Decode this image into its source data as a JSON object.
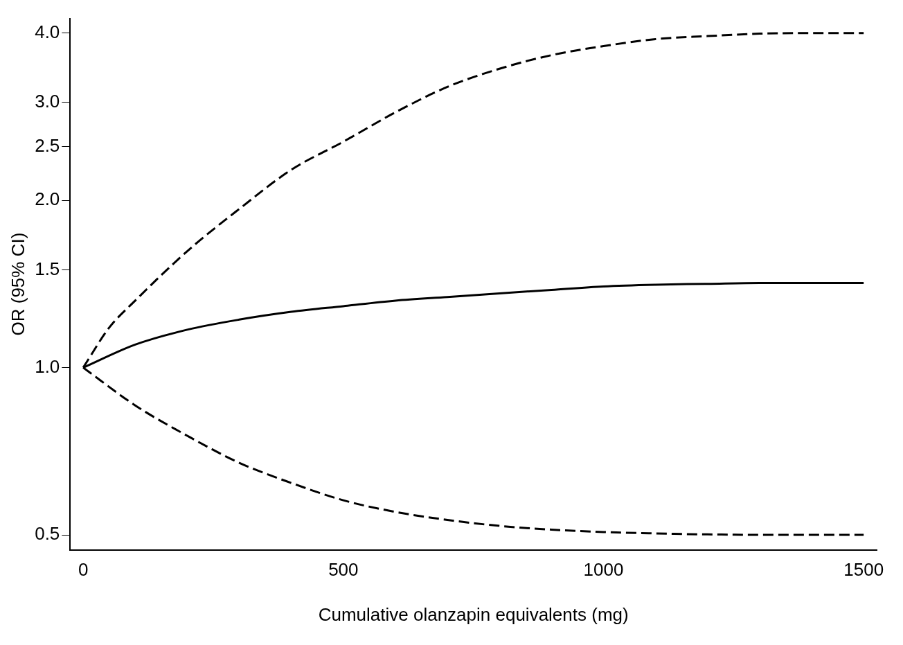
{
  "chart_data": {
    "type": "line",
    "xlabel": "Cumulative olanzapin equivalents (mg)",
    "ylabel": "OR (95% CI)",
    "log": "y",
    "grid": false,
    "legend": false,
    "marker": "none",
    "xlim": [
      -25,
      1525
    ],
    "xticks": [
      0,
      500,
      1000,
      1500
    ],
    "ylim": [
      0.47,
      4.25
    ],
    "yticks": [
      {
        "value": 0.5,
        "label": "0.5"
      },
      {
        "value": 1,
        "label": "1.0"
      },
      {
        "value": 1.5,
        "label": "1.5"
      },
      {
        "value": 2,
        "label": "2.0"
      },
      {
        "value": 2.5,
        "label": "2.5"
      },
      {
        "value": 3,
        "label": "3.0"
      },
      {
        "value": 4,
        "label": "4.0"
      }
    ],
    "series": [
      {
        "color": "#000000",
        "line_style": "dashed",
        "x": [
          0,
          50,
          100,
          200,
          300,
          400,
          500,
          600,
          700,
          800,
          900,
          1000,
          1100,
          1200,
          1300,
          1400,
          1500
        ],
        "values": [
          1.0,
          1.18,
          1.32,
          1.62,
          1.93,
          2.27,
          2.55,
          2.88,
          3.2,
          3.45,
          3.65,
          3.79,
          3.9,
          3.95,
          3.99,
          4.0,
          4.0
        ]
      },
      {
        "color": "#000000",
        "line_style": "solid",
        "x": [
          0,
          100,
          200,
          300,
          400,
          500,
          600,
          700,
          800,
          900,
          1000,
          1100,
          1200,
          1300,
          1400,
          1500
        ],
        "values": [
          1.0,
          1.1,
          1.17,
          1.22,
          1.26,
          1.29,
          1.32,
          1.34,
          1.36,
          1.38,
          1.4,
          1.41,
          1.415,
          1.42,
          1.42,
          1.42
        ]
      },
      {
        "color": "#000000",
        "line_style": "dashed",
        "x": [
          0,
          100,
          200,
          300,
          400,
          500,
          600,
          700,
          800,
          900,
          1000,
          1100,
          1200,
          1300,
          1400,
          1500
        ],
        "values": [
          1.0,
          0.855,
          0.754,
          0.674,
          0.62,
          0.577,
          0.55,
          0.532,
          0.519,
          0.511,
          0.506,
          0.503,
          0.501,
          0.5,
          0.5,
          0.5
        ]
      }
    ]
  }
}
